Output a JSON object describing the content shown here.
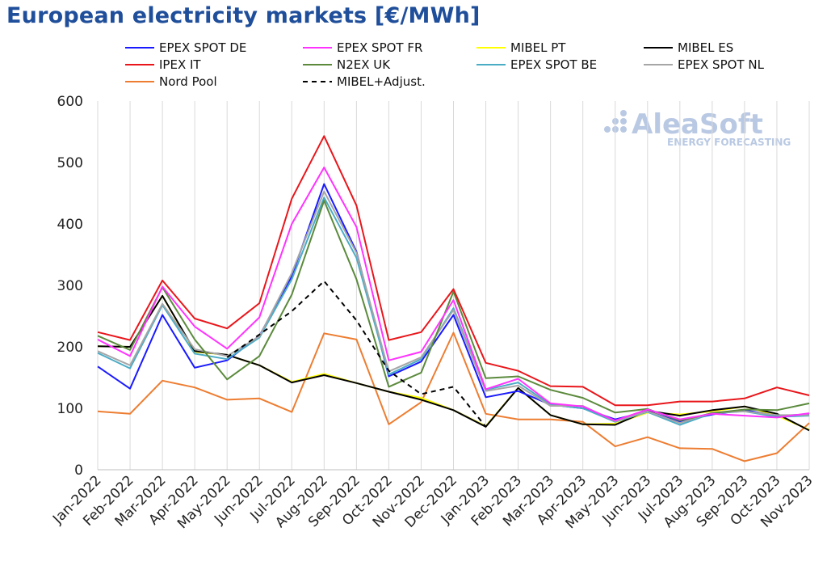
{
  "title": "European electricity markets [€/MWh]",
  "logo": {
    "name": "AleaSoft",
    "tagline": "ENERGY FORECASTING",
    "color": "#b9c9e3"
  },
  "chart_data": {
    "type": "line",
    "title": "European electricity markets [€/MWh]",
    "ylim": [
      0,
      600
    ],
    "yticks": [
      0,
      100,
      200,
      300,
      400,
      500,
      600
    ],
    "grid": "vertical",
    "legend_position": "top",
    "categories": [
      "Jan-2022",
      "Feb-2022",
      "Mar-2022",
      "Apr-2022",
      "May-2022",
      "Jun-2022",
      "Jul-2022",
      "Aug-2022",
      "Sep-2022",
      "Oct-2022",
      "Nov-2022",
      "Dec-2022",
      "Jan-2023",
      "Feb-2023",
      "Mar-2023",
      "Apr-2023",
      "May-2023",
      "Jun-2023",
      "Jul-2023",
      "Aug-2023",
      "Sep-2023",
      "Oct-2023",
      "Nov-2023"
    ],
    "series": [
      {
        "name": "EPEX SPOT DE",
        "color": "#1a1aff",
        "dash": false,
        "values": [
          168,
          132,
          252,
          166,
          178,
          218,
          315,
          465,
          355,
          152,
          176,
          252,
          118,
          128,
          106,
          100,
          82,
          95,
          78,
          90,
          97,
          88,
          90
        ]
      },
      {
        "name": "EPEX SPOT FR",
        "color": "#ff33ff",
        "dash": false,
        "values": [
          212,
          185,
          298,
          233,
          197,
          248,
          400,
          492,
          395,
          178,
          192,
          276,
          131,
          148,
          108,
          103,
          80,
          98,
          82,
          91,
          88,
          85,
          92
        ]
      },
      {
        "name": "MIBEL PT",
        "color": "#ffff00",
        "dash": false,
        "values": [
          201,
          200,
          283,
          192,
          187,
          170,
          143,
          156,
          141,
          127,
          117,
          97,
          71,
          133,
          89,
          74,
          75,
          93,
          90,
          95,
          103,
          88,
          65
        ]
      },
      {
        "name": "MIBEL ES",
        "color": "#000000",
        "dash": false,
        "values": [
          201,
          200,
          283,
          193,
          187,
          170,
          142,
          154,
          141,
          127,
          114,
          97,
          70,
          133,
          89,
          74,
          73,
          96,
          88,
          97,
          103,
          91,
          64
        ]
      },
      {
        "name": "IPEX IT",
        "color": "#e8161b",
        "dash": false,
        "values": [
          224,
          211,
          308,
          246,
          230,
          271,
          441,
          543,
          430,
          211,
          224,
          294,
          174,
          161,
          136,
          135,
          105,
          105,
          111,
          111,
          116,
          134,
          121
        ]
      },
      {
        "name": "N2EX UK",
        "color": "#5b8a3c",
        "dash": false,
        "values": [
          218,
          195,
          297,
          212,
          147,
          185,
          285,
          438,
          310,
          135,
          158,
          290,
          149,
          152,
          130,
          117,
          93,
          99,
          80,
          92,
          98,
          97,
          108
        ]
      },
      {
        "name": "EPEX SPOT BE",
        "color": "#4bacc6",
        "dash": false,
        "values": [
          190,
          165,
          268,
          189,
          180,
          215,
          310,
          443,
          345,
          155,
          180,
          263,
          130,
          142,
          106,
          100,
          78,
          94,
          73,
          92,
          95,
          86,
          88
        ]
      },
      {
        "name": "EPEX SPOT NL",
        "color": "#a6a6a6",
        "dash": false,
        "values": [
          193,
          170,
          270,
          196,
          185,
          217,
          320,
          453,
          353,
          160,
          183,
          260,
          128,
          137,
          104,
          104,
          79,
          95,
          76,
          93,
          95,
          89,
          89
        ]
      },
      {
        "name": "Nord Pool",
        "color": "#ed7d31",
        "dash": false,
        "values": [
          95,
          91,
          145,
          134,
          114,
          116,
          94,
          222,
          212,
          74,
          110,
          223,
          91,
          82,
          82,
          78,
          38,
          53,
          35,
          34,
          14,
          27,
          76
        ]
      },
      {
        "name": "MIBEL+Adjust.",
        "color": "#000000",
        "dash": true,
        "values": [
          null,
          null,
          null,
          null,
          183,
          220,
          258,
          307,
          243,
          161,
          123,
          135,
          70,
          null,
          null,
          null,
          null,
          null,
          null,
          null,
          null,
          null,
          null
        ]
      }
    ]
  }
}
